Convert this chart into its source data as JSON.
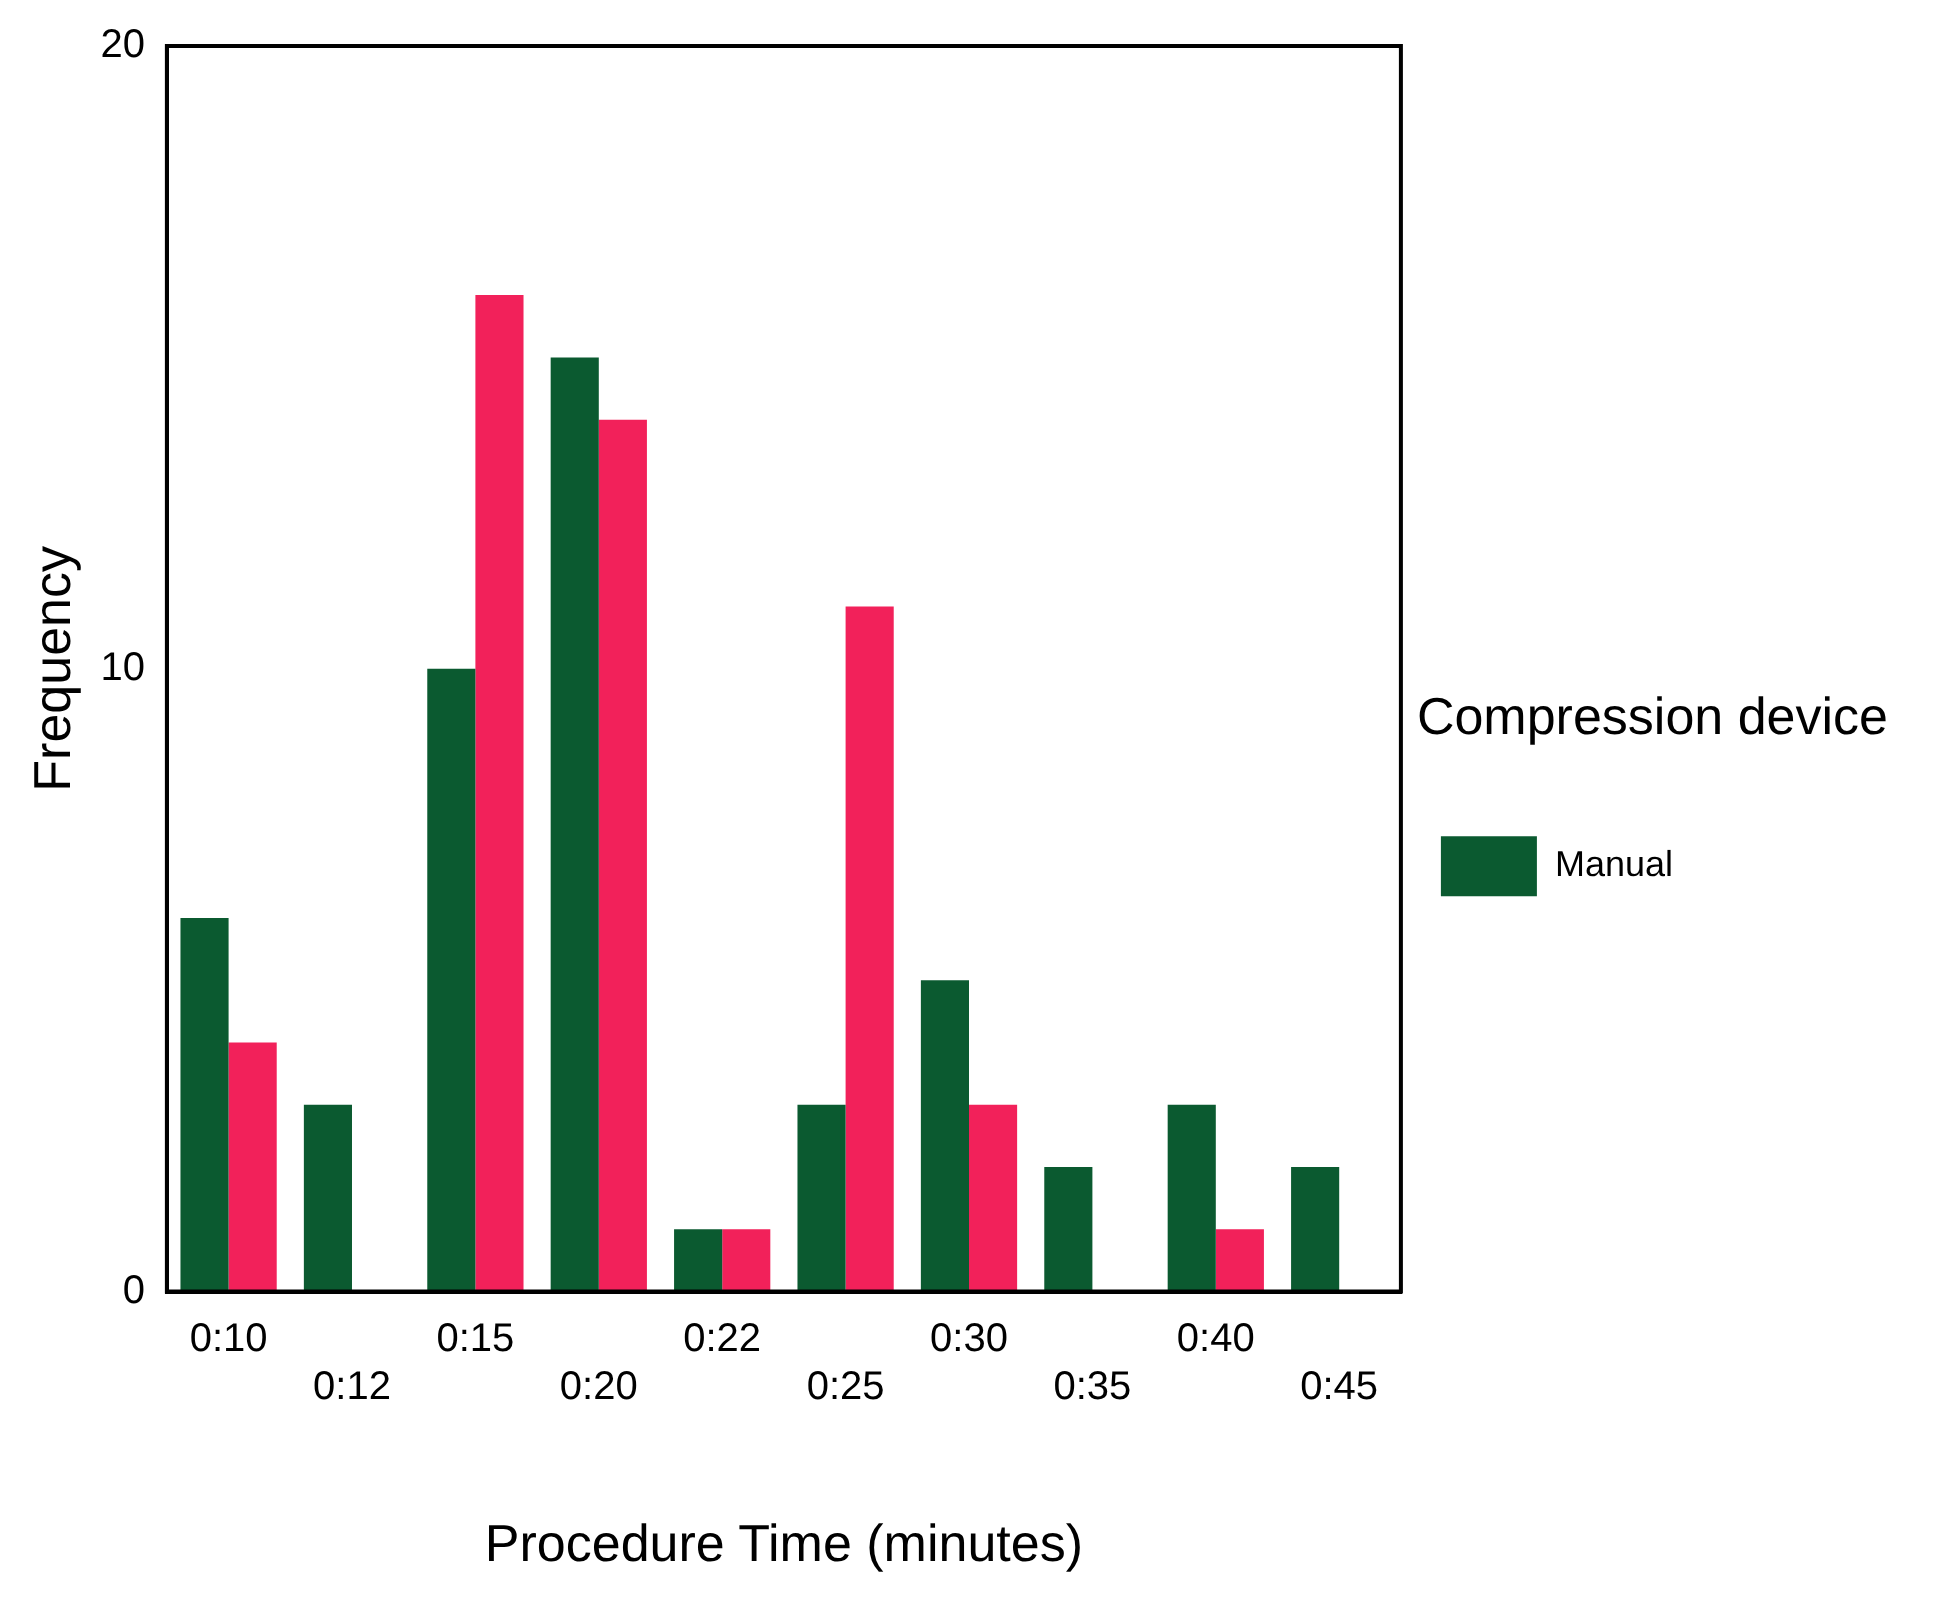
{
  "chart_data": {
    "type": "bar",
    "xlabel": "Procedure Time (minutes)",
    "ylabel": "Frequency",
    "legend_title": "Compression device",
    "categories": [
      "0:10",
      "0:12",
      "0:15",
      "0:20",
      "0:22",
      "0:25",
      "0:30",
      "0:35",
      "0:40",
      "0:45"
    ],
    "series": [
      {
        "name": "Manual",
        "color": "#0b5a30",
        "values": [
          6,
          3,
          10,
          15,
          1,
          3,
          5,
          2,
          3,
          2
        ]
      },
      {
        "color": "#f2215a",
        "values": [
          4,
          0,
          16,
          14,
          1,
          11,
          3,
          0,
          1,
          0
        ]
      }
    ],
    "ylim": [
      0,
      20
    ],
    "yticks": [
      0,
      10,
      20
    ],
    "grid": false,
    "legend": "right"
  }
}
